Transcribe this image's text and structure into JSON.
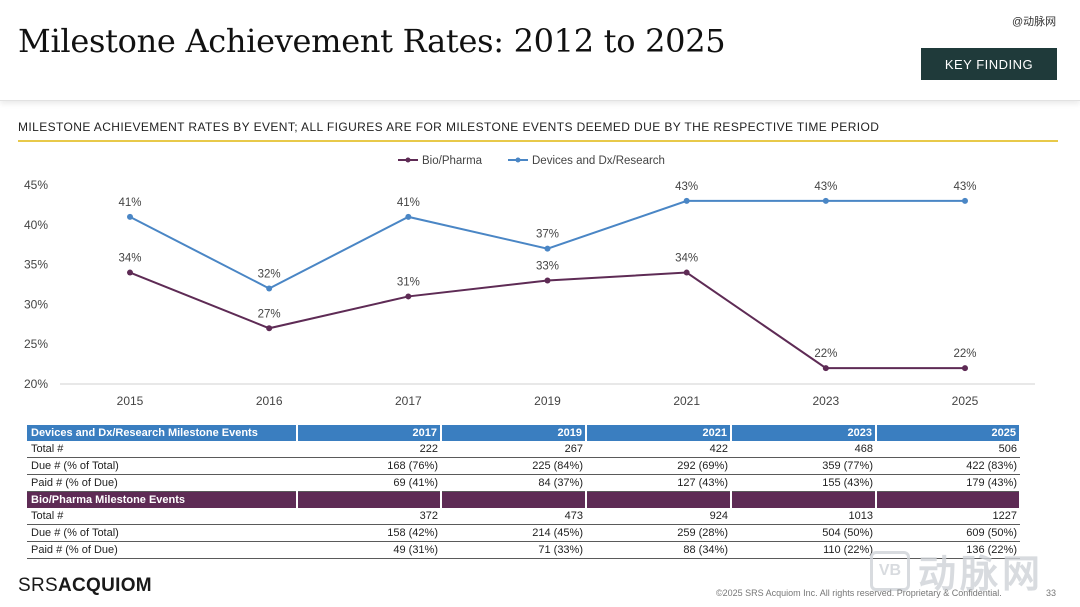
{
  "header": {
    "title": "Milestone Achievement Rates: 2012 to 2025",
    "watermark_top": "@动脉网",
    "key_finding": "KEY FINDING"
  },
  "subtitle": "MILESTONE ACHIEVEMENT RATES BY EVENT; ALL FIGURES ARE FOR MILESTONE EVENTS DEEMED DUE BY THE RESPECTIVE TIME PERIOD",
  "chart_data": {
    "type": "line",
    "x": [
      "2015",
      "2016",
      "2017",
      "2019",
      "2021",
      "2023",
      "2025"
    ],
    "series": [
      {
        "name": "Bio/Pharma",
        "color": "#5e2b55",
        "values": [
          34,
          27,
          31,
          33,
          34,
          22,
          22
        ]
      },
      {
        "name": "Devices and Dx/Research",
        "color": "#4a86c5",
        "values": [
          41,
          32,
          41,
          37,
          43,
          43,
          43
        ]
      }
    ],
    "ylim": [
      20,
      45
    ],
    "yticks": [
      20,
      25,
      30,
      35,
      40,
      45
    ],
    "ytick_labels": [
      "20%",
      "25%",
      "30%",
      "35%",
      "40%",
      "45%"
    ],
    "value_suffix": "%",
    "legend": "top-center",
    "grid": false
  },
  "table": {
    "years": [
      "2017",
      "2019",
      "2021",
      "2023",
      "2025"
    ],
    "devices": {
      "title": "Devices and Dx/Research Milestone Events",
      "rows": [
        {
          "label": "Total #",
          "values": [
            "222",
            "267",
            "422",
            "468",
            "506"
          ]
        },
        {
          "label": "Due # (% of Total)",
          "values": [
            "168 (76%)",
            "225 (84%)",
            "292 (69%)",
            "359 (77%)",
            "422 (83%)"
          ]
        },
        {
          "label": "Paid # (% of Due)",
          "values": [
            "69 (41%)",
            "84 (37%)",
            "127 (43%)",
            "155 (43%)",
            "179 (43%)"
          ]
        }
      ]
    },
    "bio": {
      "title": "Bio/Pharma Milestone Events",
      "rows": [
        {
          "label": "Total #",
          "values": [
            "372",
            "473",
            "924",
            "1013",
            "1227"
          ]
        },
        {
          "label": "Due # (% of Total)",
          "values": [
            "158 (42%)",
            "214 (45%)",
            "259 (28%)",
            "504 (50%)",
            "609 (50%)"
          ]
        },
        {
          "label": "Paid # (% of Due)",
          "values": [
            "49 (31%)",
            "71 (33%)",
            "88 (34%)",
            "110 (22%)",
            "136 (22%)"
          ]
        }
      ]
    }
  },
  "footer": {
    "logo_light": "SRS",
    "logo_bold": "ACQUIOM",
    "copyright": "©2025 SRS Acquiom Inc. All rights reserved. Proprietary & Confidential.",
    "page_number": "33",
    "watermark_box": "VB",
    "watermark_text": "动脉网"
  },
  "colors": {
    "blue": "#3a7ec0",
    "purple": "#5e2b55",
    "accent_gold": "#e8c94a",
    "dark_teal": "#1f3a3a"
  }
}
